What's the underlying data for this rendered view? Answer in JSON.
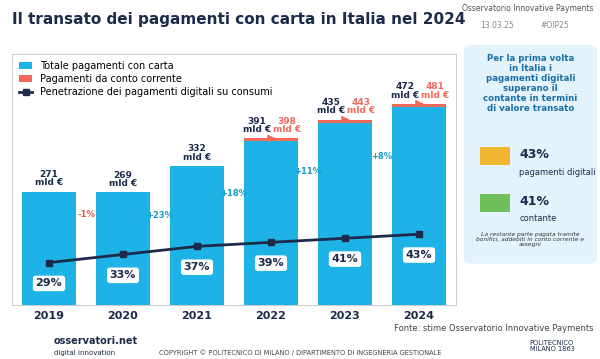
{
  "chart_data": {
    "type": "bar",
    "title": "Il transato dei pagamenti con carta in Italia nel 2024",
    "stacked": true,
    "data_labels": true,
    "tick_labels": "x",
    "legend": "upper left",
    "grid": false,
    "categories": [
      "2019",
      "2020",
      "2021",
      "2022",
      "2023",
      "2024"
    ],
    "ylim": [
      0,
      600
    ],
    "yticks": [],
    "y2lim": [
      8,
      132
    ],
    "y2ticks": [],
    "series": [
      {
        "name": "Totale pagamenti con carta",
        "color": "#1DB3E6",
        "values": [
          271,
          269,
          332,
          391,
          435,
          472
        ],
        "value_labels": [
          "271\nmld €",
          "269\nmld €",
          "332\nmld €",
          "391\nmld €",
          "435\nmld €",
          "472\nmld €"
        ]
      },
      {
        "name": "Pagamenti da conto corrente",
        "color": "#F0695B",
        "values": [
          null,
          null,
          null,
          7,
          8,
          9
        ]
      },
      {
        "name": "Penetrazione dei pagamenti digitali su consumi",
        "type": "line",
        "axis": "y2",
        "color": "#1C2B4B",
        "marker": "square",
        "line_style": "solid",
        "values": [
          29,
          33,
          37,
          39,
          41,
          43
        ],
        "value_labels": [
          "29%",
          "33%",
          "37%",
          "39%",
          "41%",
          "43%"
        ]
      }
    ],
    "totals": {
      "values": [
        null,
        null,
        null,
        398,
        443,
        481
      ],
      "value_labels": [
        null,
        null,
        null,
        "398\nmld €",
        "443\nmld €",
        "481\nmld €"
      ]
    },
    "growth": {
      "values": [
        null,
        -1,
        23,
        18,
        11,
        8
      ],
      "value_labels": [
        null,
        "-1%",
        "+23%",
        "+18%",
        "+11%",
        "+8%"
      ]
    }
  },
  "header": {
    "source_name": "Osservatorio Innovative Payments",
    "date": "13.03.25",
    "hashtag": "#OIP25"
  },
  "highlight": {
    "text": "Per la prima volta\nin Italia i\npagamenti digitali\nsuperano il\ncontante in termini\ndi valore transato",
    "items": [
      {
        "value": 43,
        "label": "43%",
        "text": "pagamenti digitali"
      },
      {
        "value": 41,
        "label": "41%",
        "text": "contante"
      }
    ],
    "note": "La restante parte pagata tramite\nbonifici, addebiti in conto corrente e\nassegni"
  },
  "footer": {
    "source": "Fonte: stime Osservatorio Innovative Payments",
    "copyright": "COPYRIGHT © POLITECNICO DI MILANO / DIPARTIMENTO DI INGEGNERIA GESTIONALE",
    "logo_left": "osservatori.net",
    "logo_left_sub": "digital innovation",
    "logo_right": "POLITECNICO\nMILANO 1863"
  }
}
